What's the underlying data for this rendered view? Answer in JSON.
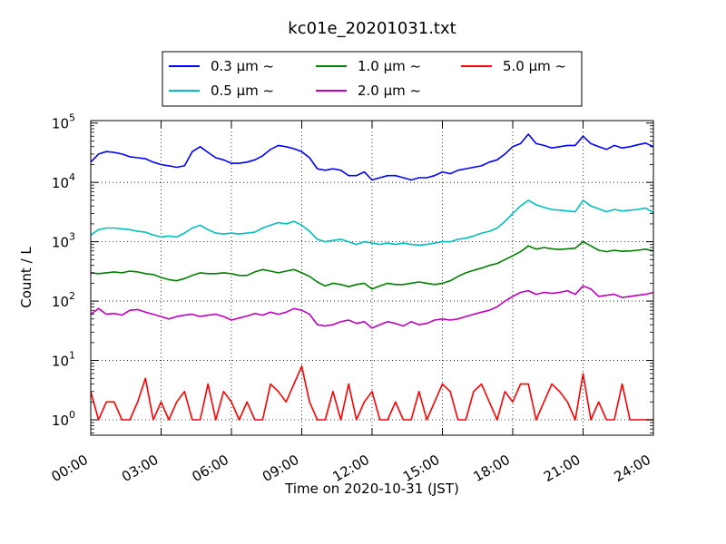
{
  "chart_data": {
    "type": "line",
    "title": "kc01e_20201031.txt",
    "xlabel": "Time on 2020-10-31 (JST)",
    "ylabel": "Count / L",
    "yscale": "log",
    "ylim": [
      0.55,
      110000
    ],
    "xlim": [
      "00:00",
      "24:00"
    ],
    "x_ticks": [
      "00:00",
      "03:00",
      "06:00",
      "09:00",
      "12:00",
      "15:00",
      "18:00",
      "21:00",
      "24:00"
    ],
    "y_ticks": [
      {
        "value": 1,
        "base": "10",
        "exp": "0"
      },
      {
        "value": 10,
        "base": "10",
        "exp": "1"
      },
      {
        "value": 100,
        "base": "10",
        "exp": "2"
      },
      {
        "value": 1000,
        "base": "10",
        "exp": "3"
      },
      {
        "value": 10000,
        "base": "10",
        "exp": "4"
      },
      {
        "value": 100000,
        "base": "10",
        "exp": "5"
      }
    ],
    "grid": true,
    "legend_position": "top",
    "series": [
      {
        "name": "0.3 μm ~",
        "color": "#0000ff",
        "x": [
          "00:00",
          "00:20",
          "00:40",
          "01:00",
          "01:20",
          "01:40",
          "02:00",
          "02:20",
          "02:40",
          "03:00",
          "03:20",
          "03:40",
          "04:00",
          "04:20",
          "04:40",
          "05:00",
          "05:20",
          "05:40",
          "06:00",
          "06:20",
          "06:40",
          "07:00",
          "07:20",
          "07:40",
          "08:00",
          "08:20",
          "08:40",
          "09:00",
          "09:20",
          "09:40",
          "10:00",
          "10:20",
          "10:40",
          "11:00",
          "11:20",
          "11:40",
          "12:00",
          "12:20",
          "12:40",
          "13:00",
          "13:20",
          "13:40",
          "14:00",
          "14:20",
          "14:40",
          "15:00",
          "15:20",
          "15:40",
          "16:00",
          "16:20",
          "16:40",
          "17:00",
          "17:20",
          "17:40",
          "18:00",
          "18:20",
          "18:40",
          "19:00",
          "19:20",
          "19:40",
          "20:00",
          "20:20",
          "20:40",
          "21:00",
          "21:20",
          "21:40",
          "22:00",
          "22:20",
          "22:40",
          "23:00",
          "23:20",
          "23:40",
          "24:00"
        ],
        "values": [
          22000,
          30000,
          33000,
          32000,
          30000,
          27000,
          26000,
          25000,
          22000,
          20000,
          19000,
          18000,
          19000,
          33000,
          40000,
          32000,
          26000,
          24000,
          21000,
          21000,
          22000,
          24000,
          28000,
          36000,
          42000,
          40000,
          37000,
          33000,
          26000,
          17000,
          16000,
          17000,
          16000,
          13000,
          13000,
          15000,
          11000,
          12000,
          13000,
          13000,
          12000,
          11000,
          12000,
          12000,
          13000,
          15000,
          14000,
          16000,
          17000,
          18000,
          19000,
          22000,
          24000,
          30000,
          40000,
          45000,
          65000,
          45000,
          42000,
          38000,
          40000,
          42000,
          42000,
          60000,
          45000,
          40000,
          36000,
          42000,
          38000,
          40000,
          43000,
          46000,
          40000
        ]
      },
      {
        "name": "0.5 μm ~",
        "color": "#00bfbf",
        "x": [
          "00:00",
          "00:20",
          "00:40",
          "01:00",
          "01:20",
          "01:40",
          "02:00",
          "02:20",
          "02:40",
          "03:00",
          "03:20",
          "03:40",
          "04:00",
          "04:20",
          "04:40",
          "05:00",
          "05:20",
          "05:40",
          "06:00",
          "06:20",
          "06:40",
          "07:00",
          "07:20",
          "07:40",
          "08:00",
          "08:20",
          "08:40",
          "09:00",
          "09:20",
          "09:40",
          "10:00",
          "10:20",
          "10:40",
          "11:00",
          "11:20",
          "11:40",
          "12:00",
          "12:20",
          "12:40",
          "13:00",
          "13:20",
          "13:40",
          "14:00",
          "14:20",
          "14:40",
          "15:00",
          "15:20",
          "15:40",
          "16:00",
          "16:20",
          "16:40",
          "17:00",
          "17:20",
          "17:40",
          "18:00",
          "18:20",
          "18:40",
          "19:00",
          "19:20",
          "19:40",
          "20:00",
          "20:20",
          "20:40",
          "21:00",
          "21:20",
          "21:40",
          "22:00",
          "22:20",
          "22:40",
          "23:00",
          "23:20",
          "23:40",
          "24:00"
        ],
        "values": [
          1300,
          1600,
          1700,
          1700,
          1650,
          1600,
          1500,
          1450,
          1300,
          1200,
          1250,
          1200,
          1400,
          1700,
          1900,
          1600,
          1400,
          1350,
          1400,
          1350,
          1400,
          1450,
          1700,
          1900,
          2100,
          2000,
          2200,
          1900,
          1500,
          1100,
          1000,
          1050,
          1100,
          1000,
          900,
          1000,
          950,
          900,
          950,
          900,
          950,
          900,
          880,
          900,
          950,
          1000,
          1000,
          1100,
          1150,
          1250,
          1400,
          1500,
          1700,
          2200,
          3000,
          4000,
          5000,
          4200,
          3800,
          3500,
          3400,
          3300,
          3200,
          5000,
          4000,
          3600,
          3200,
          3500,
          3300,
          3400,
          3500,
          3700,
          3100
        ]
      },
      {
        "name": "1.0 μm ~",
        "color": "#008000",
        "x": [
          "00:00",
          "00:20",
          "00:40",
          "01:00",
          "01:20",
          "01:40",
          "02:00",
          "02:20",
          "02:40",
          "03:00",
          "03:20",
          "03:40",
          "04:00",
          "04:20",
          "04:40",
          "05:00",
          "05:20",
          "05:40",
          "06:00",
          "06:20",
          "06:40",
          "07:00",
          "07:20",
          "07:40",
          "08:00",
          "08:20",
          "08:40",
          "09:00",
          "09:20",
          "09:40",
          "10:00",
          "10:20",
          "10:40",
          "11:00",
          "11:20",
          "11:40",
          "12:00",
          "12:20",
          "12:40",
          "13:00",
          "13:20",
          "13:40",
          "14:00",
          "14:20",
          "14:40",
          "15:00",
          "15:20",
          "15:40",
          "16:00",
          "16:20",
          "16:40",
          "17:00",
          "17:20",
          "17:40",
          "18:00",
          "18:20",
          "18:40",
          "19:00",
          "19:20",
          "19:40",
          "20:00",
          "20:20",
          "20:40",
          "21:00",
          "21:20",
          "21:40",
          "22:00",
          "22:20",
          "22:40",
          "23:00",
          "23:20",
          "23:40",
          "24:00"
        ],
        "values": [
          300,
          290,
          300,
          310,
          300,
          320,
          310,
          290,
          280,
          250,
          230,
          220,
          240,
          270,
          300,
          290,
          290,
          300,
          290,
          270,
          270,
          310,
          340,
          320,
          300,
          320,
          340,
          300,
          260,
          210,
          180,
          200,
          190,
          175,
          190,
          200,
          160,
          180,
          200,
          190,
          190,
          200,
          210,
          200,
          190,
          200,
          220,
          260,
          300,
          330,
          360,
          400,
          430,
          500,
          580,
          680,
          850,
          750,
          800,
          760,
          740,
          760,
          780,
          1000,
          850,
          720,
          680,
          720,
          690,
          700,
          720,
          750,
          700
        ]
      },
      {
        "name": "2.0 μm ~",
        "color": "#bf00bf",
        "x": [
          "00:00",
          "00:20",
          "00:40",
          "01:00",
          "01:20",
          "01:40",
          "02:00",
          "02:20",
          "02:40",
          "03:00",
          "03:20",
          "03:40",
          "04:00",
          "04:20",
          "04:40",
          "05:00",
          "05:20",
          "05:40",
          "06:00",
          "06:20",
          "06:40",
          "07:00",
          "07:20",
          "07:40",
          "08:00",
          "08:20",
          "08:40",
          "09:00",
          "09:20",
          "09:40",
          "10:00",
          "10:20",
          "10:40",
          "11:00",
          "11:20",
          "11:40",
          "12:00",
          "12:20",
          "12:40",
          "13:00",
          "13:20",
          "13:40",
          "14:00",
          "14:20",
          "14:40",
          "15:00",
          "15:20",
          "15:40",
          "16:00",
          "16:20",
          "16:40",
          "17:00",
          "17:20",
          "17:40",
          "18:00",
          "18:20",
          "18:40",
          "19:00",
          "19:20",
          "19:40",
          "20:00",
          "20:20",
          "20:40",
          "21:00",
          "21:20",
          "21:40",
          "22:00",
          "22:20",
          "22:40",
          "23:00",
          "23:20",
          "23:40",
          "24:00"
        ],
        "values": [
          60,
          75,
          60,
          62,
          58,
          70,
          72,
          65,
          60,
          55,
          50,
          55,
          58,
          60,
          55,
          58,
          60,
          55,
          48,
          52,
          56,
          62,
          58,
          65,
          60,
          65,
          75,
          70,
          60,
          40,
          38,
          40,
          45,
          48,
          42,
          45,
          35,
          40,
          45,
          42,
          38,
          45,
          40,
          42,
          48,
          50,
          48,
          50,
          55,
          60,
          65,
          70,
          80,
          100,
          120,
          140,
          150,
          130,
          140,
          135,
          140,
          150,
          130,
          180,
          160,
          120,
          125,
          130,
          115,
          120,
          125,
          130,
          140
        ]
      },
      {
        "name": "5.0 μm ~",
        "color": "#ff0000",
        "x": [
          "00:00",
          "00:20",
          "00:40",
          "01:00",
          "01:20",
          "01:40",
          "02:00",
          "02:20",
          "02:40",
          "03:00",
          "03:20",
          "03:40",
          "04:00",
          "04:20",
          "04:40",
          "05:00",
          "05:20",
          "05:40",
          "06:00",
          "06:20",
          "06:40",
          "07:00",
          "07:20",
          "07:40",
          "08:00",
          "08:20",
          "08:40",
          "09:00",
          "09:20",
          "09:40",
          "10:00",
          "10:20",
          "10:40",
          "11:00",
          "11:20",
          "11:40",
          "12:00",
          "12:20",
          "12:40",
          "13:00",
          "13:20",
          "13:40",
          "14:00",
          "14:20",
          "14:40",
          "15:00",
          "15:20",
          "15:40",
          "16:00",
          "16:20",
          "16:40",
          "17:00",
          "17:20",
          "17:40",
          "18:00",
          "18:20",
          "18:40",
          "19:00",
          "19:20",
          "19:40",
          "20:00",
          "20:20",
          "20:40",
          "21:00",
          "21:20",
          "21:40",
          "22:00",
          "22:20",
          "22:40",
          "23:00",
          "23:20",
          "23:40",
          "24:00"
        ],
        "values": [
          3,
          1,
          2,
          2,
          1,
          1,
          2,
          5,
          1,
          2,
          1,
          2,
          3,
          1,
          1,
          4,
          1,
          3,
          2,
          1,
          2,
          1,
          1,
          4,
          3,
          2,
          4,
          8,
          2,
          1,
          1,
          3,
          1,
          4,
          1,
          2,
          3,
          1,
          1,
          2,
          1,
          1,
          3,
          1,
          2,
          4,
          3,
          1,
          1,
          3,
          4,
          2,
          1,
          3,
          2,
          4,
          4,
          1,
          2,
          4,
          3,
          2,
          1,
          6,
          1,
          2,
          1,
          1,
          4,
          1,
          1,
          1,
          1
        ]
      }
    ]
  }
}
